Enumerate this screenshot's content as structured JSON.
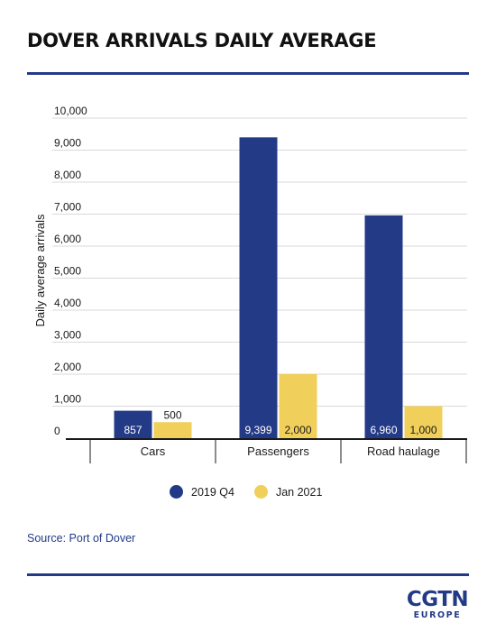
{
  "title": "DOVER ARRIVALS DAILY AVERAGE",
  "source": "Source: Port of Dover",
  "logo": {
    "main": "CGTN",
    "sub": "EUROPE"
  },
  "colors": {
    "series1": "#233a87",
    "series2": "#f0cf5b",
    "rule": "#233a87",
    "grid": "#d9d9d9"
  },
  "chart_data": {
    "type": "bar",
    "ylabel": "Daily average arrivals",
    "xlabel": "",
    "ylim": [
      0,
      10000
    ],
    "yticks": [
      "0",
      "1,000",
      "2,000",
      "3,000",
      "4,000",
      "5,000",
      "6,000",
      "7,000",
      "8,000",
      "9,000",
      "10,000"
    ],
    "categories": [
      "Cars",
      "Passengers",
      "Road haulage"
    ],
    "grid": true,
    "legend_position": "bottom",
    "series": [
      {
        "name": "2019 Q4",
        "values": [
          857,
          9399,
          6960
        ],
        "labels": [
          "857",
          "9,399",
          "6,960"
        ]
      },
      {
        "name": "Jan 2021",
        "values": [
          500,
          2000,
          1000
        ],
        "labels": [
          "500",
          "2,000",
          "1,000"
        ]
      }
    ]
  }
}
